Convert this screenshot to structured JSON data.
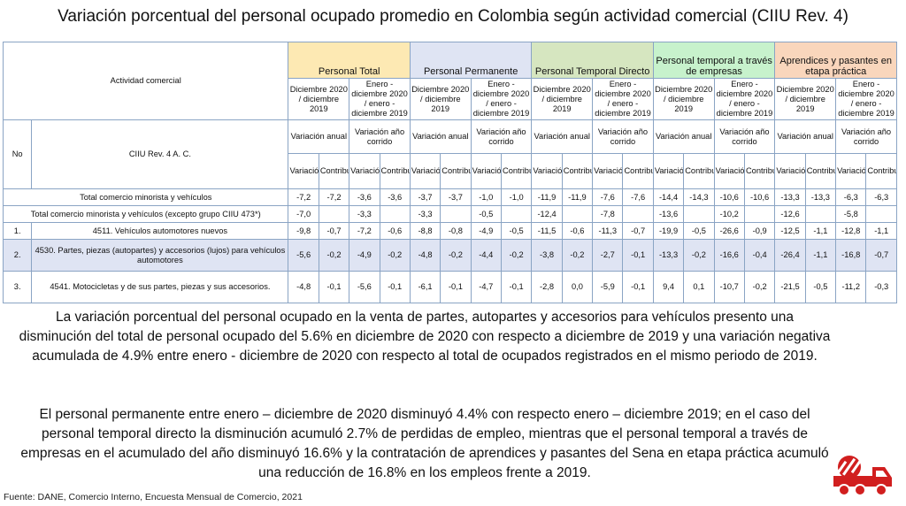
{
  "title": "Variación porcentual del personal ocupado promedio en Colombia según actividad comercial  (CIIU Rev. 4)",
  "table": {
    "col_activity": "Actividad comercial",
    "col_no": "No",
    "col_ciiu": "CIIU Rev. 4 A. C.",
    "groups": [
      {
        "label": "Personal Total",
        "color": "#fde9b3"
      },
      {
        "label": "Personal Permanente",
        "color": "#dfe4f3"
      },
      {
        "label": "Personal Temporal Directo",
        "color": "#d6e6c0"
      },
      {
        "label": "Personal temporal a través de empresas",
        "color": "#c7f2cc"
      },
      {
        "label": "Aprendices y pasantes en etapa práctica",
        "color": "#f9d6bc"
      }
    ],
    "period_a": "Diciembre 2020 / diciembre 2019",
    "period_b": "Enero - diciembre 2020 / enero - diciembre 2019",
    "var_anual": "Variación anual",
    "var_corrido": "Variación año corrido",
    "sub_var": "Variación",
    "sub_contrib": "Contribución",
    "rows": [
      {
        "no": "",
        "name": "Total comercio minorista y vehículos",
        "vals": [
          "-7,2",
          "-7,2",
          "-3,6",
          "-3,6",
          "-3,7",
          "-3,7",
          "-1,0",
          "-1,0",
          "-11,9",
          "-11,9",
          "-7,6",
          "-7,6",
          "-14,4",
          "-14,3",
          "-10,6",
          "-10,6",
          "-13,3",
          "-13,3",
          "-6,3",
          "-6,3"
        ]
      },
      {
        "no": "",
        "name": "Total comercio minorista y vehículos (excepto grupo CIIU 473*)",
        "vals": [
          "-7,0",
          "",
          "-3,3",
          "",
          "-3,3",
          "",
          "-0,5",
          "",
          "-12,4",
          "",
          "-7,8",
          "",
          "-13,6",
          "",
          "-10,2",
          "",
          "-12,6",
          "",
          "-5,8",
          ""
        ]
      },
      {
        "no": "1.",
        "name": "4511. Vehículos automotores nuevos",
        "vals": [
          "-9,8",
          "-0,7",
          "-7,2",
          "-0,6",
          "-8,8",
          "-0,8",
          "-4,9",
          "-0,5",
          "-11,5",
          "-0,6",
          "-11,3",
          "-0,7",
          "-19,9",
          "-0,5",
          "-26,6",
          "-0,9",
          "-12,5",
          "-1,1",
          "-12,8",
          "-1,1"
        ]
      },
      {
        "no": "2.",
        "name": "4530. Partes, piezas (autopartes) y accesorios (lujos) para vehículos automotores",
        "vals": [
          "-5,6",
          "-0,2",
          "-4,9",
          "-0,2",
          "-4,8",
          "-0,2",
          "-4,4",
          "-0,2",
          "-3,8",
          "-0,2",
          "-2,7",
          "-0,1",
          "-13,3",
          "-0,2",
          "-16,6",
          "-0,4",
          "-26,4",
          "-1,1",
          "-16,8",
          "-0,7"
        ]
      },
      {
        "no": "3.",
        "name": "4541.  Motocicletas y de sus partes, piezas y sus accesorios.",
        "vals": [
          "-4,8",
          "-0,1",
          "-5,6",
          "-0,1",
          "-6,1",
          "-0,1",
          "-4,7",
          "-0,1",
          "-2,8",
          "0,0",
          "-5,9",
          "-0,1",
          "9,4",
          "0,1",
          "-10,7",
          "-0,2",
          "-21,5",
          "-0,5",
          "-11,2",
          "-0,3"
        ]
      }
    ]
  },
  "paragraph1": "La variación porcentual del personal ocupado en la venta de partes, autopartes y accesorios para vehículos presento una disminución del total de personal ocupado del 5.6% en diciembre de 2020 con respecto a diciembre de 2019 y una variación negativa acumulada de 4.9% entre enero - diciembre de 2020 con respecto al total de ocupados registrados en el mismo periodo de 2019.",
  "paragraph2": "El personal permanente entre enero – diciembre de 2020 disminuyó 4.4% con respecto enero – diciembre 2019; en el caso del personal temporal directo la disminución acumuló 2.7% de perdidas de empleo, mientras que el personal temporal a través de empresas en el acumulado del año disminuyó 16.6% y la contratación de aprendices y pasantes del Sena en etapa práctica acumuló una reducción de 16.8% en los empleos frente a 2019.",
  "source": "Fuente: DANE, Comercio Interno, Encuesta Mensual de Comercio, 2021",
  "icon": {
    "name": "truck-icon",
    "color": "#d11f1f"
  }
}
